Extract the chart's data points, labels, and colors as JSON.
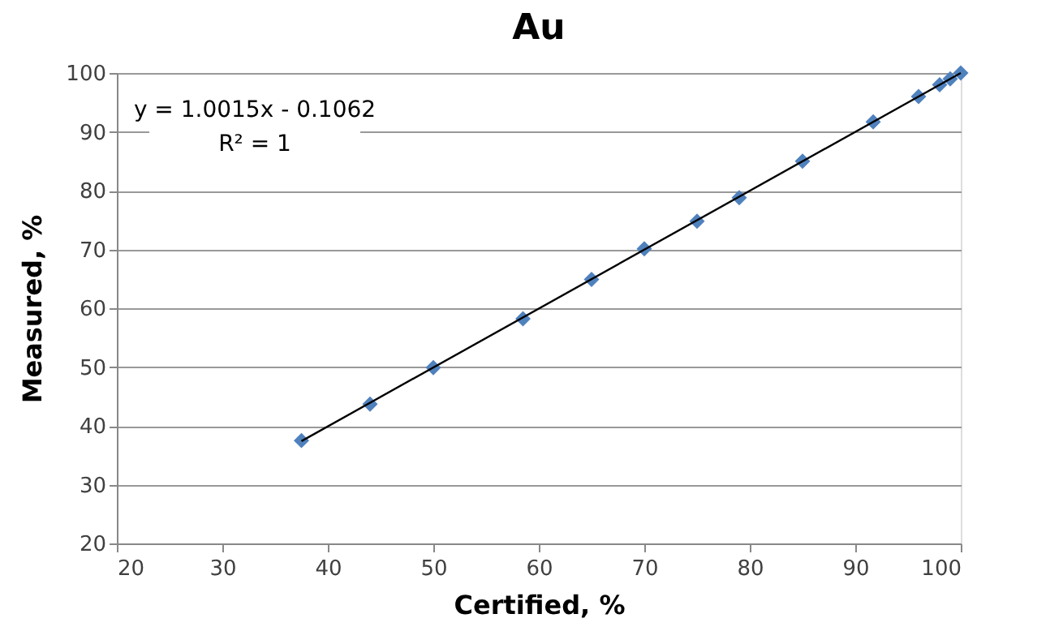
{
  "chart_data": {
    "type": "scatter",
    "title": "Au",
    "xlabel": "Certified, %",
    "ylabel": "Measured, %",
    "xlim": [
      20,
      100
    ],
    "xticks": [
      20,
      30,
      40,
      50,
      60,
      70,
      80,
      90,
      100
    ],
    "ylim": [
      20,
      100
    ],
    "yticks": [
      20,
      30,
      40,
      50,
      60,
      70,
      80,
      90,
      100
    ],
    "grid": "y",
    "annotations": [
      "y = 1.0015x - 0.1062",
      "R² = 1"
    ],
    "series": [
      {
        "color": "#4f81bd",
        "marker": "diamond",
        "x": [
          37.5,
          44,
          50,
          58.5,
          65,
          70,
          75,
          79,
          85,
          91.7,
          96,
          98,
          99,
          100
        ],
        "values": [
          37.5,
          43.7,
          49.9,
          58.2,
          64.9,
          70.1,
          74.8,
          78.8,
          85,
          91.7,
          96,
          98,
          99,
          100
        ]
      },
      {
        "type": "line",
        "color": "#000000",
        "marker": "none",
        "x": [
          37.5,
          100
        ],
        "values": [
          37.4,
          100.0
        ]
      }
    ]
  }
}
